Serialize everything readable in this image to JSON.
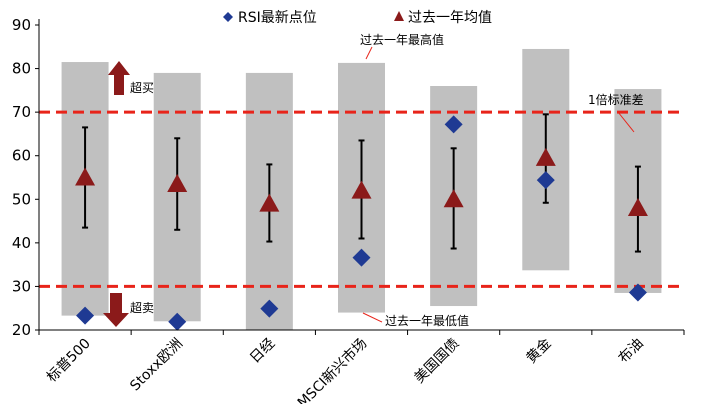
{
  "chart_data": {
    "type": "range-marker",
    "title": "",
    "xlabel": "",
    "ylabel": "",
    "ylim": [
      20,
      90
    ],
    "yticks": [
      20,
      30,
      40,
      50,
      60,
      70,
      80,
      90
    ],
    "categories": [
      "标普500",
      "Stoxx欧洲",
      "日经",
      "MSCI新兴市场",
      "美国国债",
      "黄金",
      "布油"
    ],
    "legend": {
      "position": "top",
      "rsi_label": "RSI最新点位",
      "avg_label": "过去一年均值"
    },
    "series": {
      "range_high": [
        81.5,
        79,
        79,
        81.3,
        76,
        84.5,
        75.3
      ],
      "range_low": [
        23.3,
        22,
        20,
        24,
        25.5,
        33.7,
        28.5
      ],
      "avg": [
        55,
        53.5,
        49,
        52,
        50,
        59.5,
        48
      ],
      "std_high": [
        66.5,
        64,
        58,
        63.5,
        61.7,
        69.5,
        57.5
      ],
      "std_low": [
        43.5,
        43,
        40.3,
        41,
        38.7,
        49.2,
        38
      ],
      "rsi": [
        23.3,
        21.9,
        24.9,
        36.6,
        67.2,
        54.4,
        28.6
      ]
    },
    "reference_lines": [
      70,
      30
    ],
    "colors": {
      "range_bar": "#c0c0c0",
      "avg": "#8b1a1a",
      "rsi": "#1f3a93",
      "reference": "#e8241a",
      "arrow": "#8b1a1a"
    },
    "annotations": {
      "overbought": "超买",
      "oversold": "超卖",
      "max_label": "过去一年最高值",
      "min_label": "过去一年最低值",
      "std_label": "1倍标准差"
    }
  }
}
